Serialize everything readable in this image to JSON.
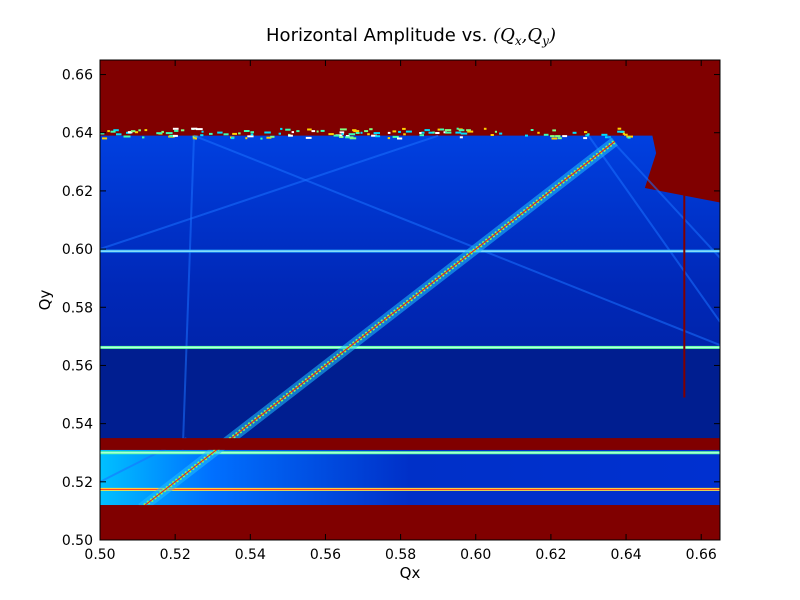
{
  "chart_data": {
    "type": "heatmap",
    "title": "Horizontal Amplitude vs. ",
    "title_math": "(Qₓ,Qᵧ)",
    "title_tokens": [
      "(",
      "Q",
      "x",
      ",",
      "Q",
      "y",
      ")"
    ],
    "xlabel": "Qx",
    "ylabel": "Qy",
    "xlim": [
      0.5,
      0.665
    ],
    "ylim": [
      0.5,
      0.665
    ],
    "xticks": [
      "0.50",
      "0.52",
      "0.54",
      "0.56",
      "0.58",
      "0.60",
      "0.62",
      "0.64",
      "0.66"
    ],
    "yticks": [
      "0.50",
      "0.52",
      "0.54",
      "0.56",
      "0.58",
      "0.60",
      "0.62",
      "0.64",
      "0.66"
    ],
    "colormap": "jet",
    "background_color": "#800000",
    "grid": false,
    "data_region": {
      "x": [
        0.5,
        0.665
      ],
      "y_upper_block": [
        0.535,
        0.639
      ],
      "y_lower_block": [
        0.512,
        0.531
      ]
    },
    "features": [
      {
        "kind": "horizontal_line",
        "y": 0.5993,
        "x": [
          0.5,
          0.665
        ],
        "intensity": 0.35
      },
      {
        "kind": "horizontal_line",
        "y": 0.5662,
        "x": [
          0.5,
          0.665
        ],
        "intensity": 0.55
      },
      {
        "kind": "horizontal_line",
        "y": 0.5174,
        "x": [
          0.5,
          0.665
        ],
        "intensity": 0.8
      },
      {
        "kind": "horizontal_line",
        "y": 0.53,
        "x": [
          0.5,
          0.665
        ],
        "intensity": 0.6
      },
      {
        "kind": "diagonal_resonance",
        "from": [
          0.511,
          0.511
        ],
        "to": [
          0.637,
          0.637
        ],
        "intensity": 0.9
      },
      {
        "kind": "vertical_line",
        "x": 0.6555,
        "y": [
          0.549,
          0.633
        ]
      }
    ]
  }
}
